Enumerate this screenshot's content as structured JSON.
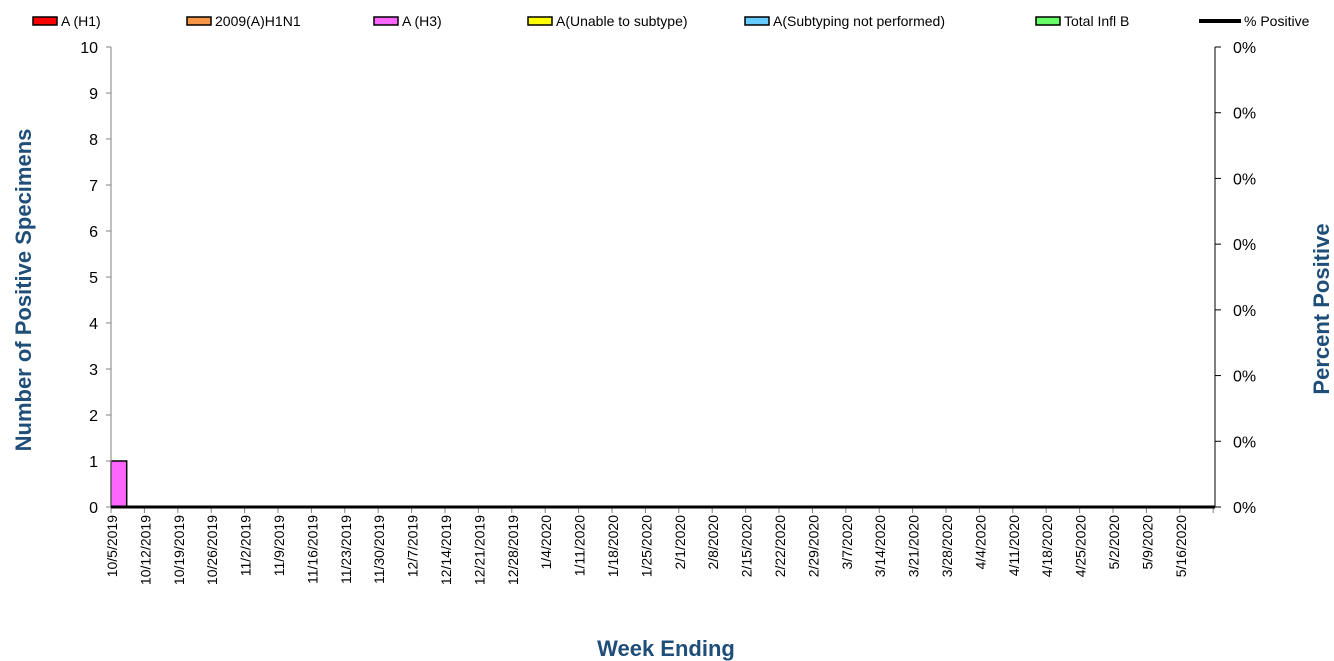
{
  "chart_data": {
    "type": "bar",
    "stacked": true,
    "xlabel": "Week Ending",
    "ylabel": "Number of  Positive Specimens",
    "y2label": "Percent Positive",
    "ylim": [
      0,
      10
    ],
    "yticks": [
      0,
      1,
      2,
      3,
      4,
      5,
      6,
      7,
      8,
      9,
      10
    ],
    "y2ticks": [
      "0%",
      "0%",
      "0%",
      "0%",
      "0%",
      "0%",
      "0%",
      "0%"
    ],
    "grid": false,
    "legend_position": "top",
    "title_color": "#1f4e79",
    "categories": [
      "10/5/2019",
      "10/12/2019",
      "10/19/2019",
      "10/26/2019",
      "11/2/2019",
      "11/9/2019",
      "11/16/2019",
      "11/23/2019",
      "11/30/2019",
      "12/7/2019",
      "12/14/2019",
      "12/21/2019",
      "12/28/2019",
      "1/4/2020",
      "1/11/2020",
      "1/18/2020",
      "1/25/2020",
      "2/1/2020",
      "2/8/2020",
      "2/15/2020",
      "2/22/2020",
      "2/29/2020",
      "3/7/2020",
      "3/14/2020",
      "3/21/2020",
      "3/28/2020",
      "4/4/2020",
      "4/11/2020",
      "4/18/2020",
      "4/25/2020",
      "5/2/2020",
      "5/9/2020",
      "5/16/2020"
    ],
    "series": [
      {
        "name": "A (H1)",
        "color": "#ff0000",
        "values": [
          0,
          0,
          0,
          0,
          0,
          0,
          0,
          0,
          0,
          0,
          0,
          0,
          0,
          0,
          0,
          0,
          0,
          0,
          0,
          0,
          0,
          0,
          0,
          0,
          0,
          0,
          0,
          0,
          0,
          0,
          0,
          0,
          0
        ]
      },
      {
        "name": "2009(A)H1N1",
        "color": "#f79646",
        "values": [
          0,
          0,
          0,
          0,
          0,
          0,
          0,
          0,
          0,
          0,
          0,
          0,
          0,
          0,
          0,
          0,
          0,
          0,
          0,
          0,
          0,
          0,
          0,
          0,
          0,
          0,
          0,
          0,
          0,
          0,
          0,
          0,
          0
        ]
      },
      {
        "name": "A (H3)",
        "color": "#ff66ff",
        "values": [
          1,
          0,
          0,
          0,
          0,
          0,
          0,
          0,
          0,
          0,
          0,
          0,
          0,
          0,
          0,
          0,
          0,
          0,
          0,
          0,
          0,
          0,
          0,
          0,
          0,
          0,
          0,
          0,
          0,
          0,
          0,
          0,
          0
        ]
      },
      {
        "name": "A(Unable to subtype)",
        "color": "#ffff00",
        "values": [
          0,
          0,
          0,
          0,
          0,
          0,
          0,
          0,
          0,
          0,
          0,
          0,
          0,
          0,
          0,
          0,
          0,
          0,
          0,
          0,
          0,
          0,
          0,
          0,
          0,
          0,
          0,
          0,
          0,
          0,
          0,
          0,
          0
        ]
      },
      {
        "name": "A(Subtyping not performed)",
        "color": "#66ccff",
        "values": [
          0,
          0,
          0,
          0,
          0,
          0,
          0,
          0,
          0,
          0,
          0,
          0,
          0,
          0,
          0,
          0,
          0,
          0,
          0,
          0,
          0,
          0,
          0,
          0,
          0,
          0,
          0,
          0,
          0,
          0,
          0,
          0,
          0
        ]
      },
      {
        "name": "Total Infl B",
        "color": "#66ff66",
        "values": [
          0,
          0,
          0,
          0,
          0,
          0,
          0,
          0,
          0,
          0,
          0,
          0,
          0,
          0,
          0,
          0,
          0,
          0,
          0,
          0,
          0,
          0,
          0,
          0,
          0,
          0,
          0,
          0,
          0,
          0,
          0,
          0,
          0
        ]
      }
    ],
    "line_series": {
      "name": "% Positive",
      "color": "#000000",
      "axis": "right",
      "values": [
        0,
        0,
        0,
        0,
        0,
        0,
        0,
        0,
        0,
        0,
        0,
        0,
        0,
        0,
        0,
        0,
        0,
        0,
        0,
        0,
        0,
        0,
        0,
        0,
        0,
        0,
        0,
        0,
        0,
        0,
        0,
        0,
        0
      ]
    }
  }
}
